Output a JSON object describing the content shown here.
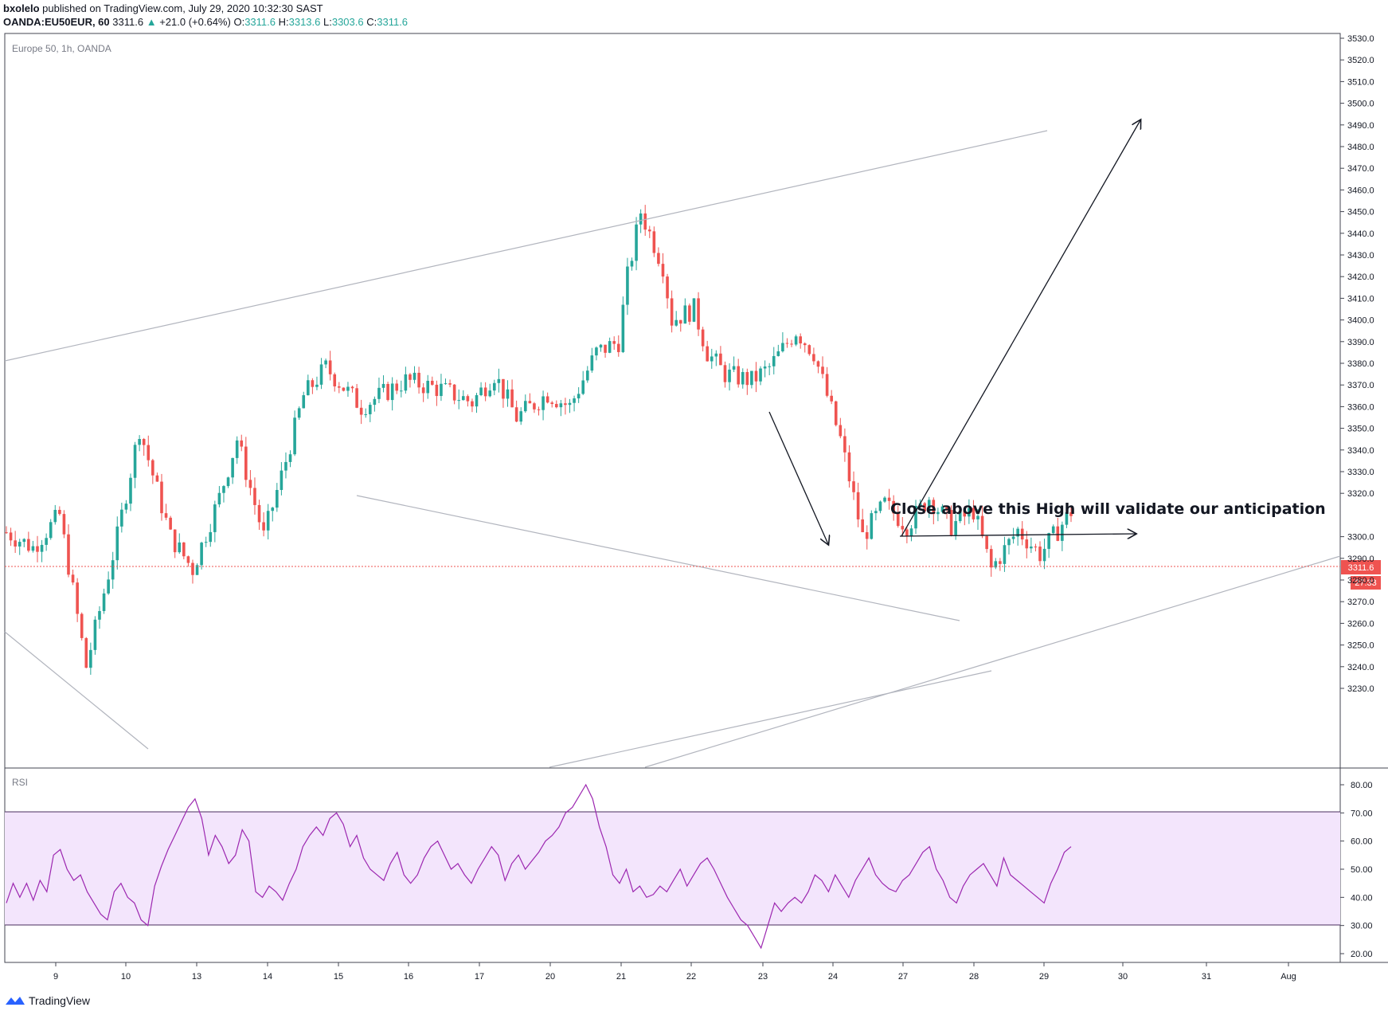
{
  "header": {
    "publisher": "bxolelo",
    "published_text": " published on TradingView.com, July 29, 2020 10:32:30 SAST",
    "symbol": "OANDA:EU50EUR, 60",
    "last": "3311.6",
    "change_arrow": "▲",
    "change": "+21.0 (+0.64%)",
    "o_label": "O:",
    "o_value": "3311.6",
    "h_label": "H:",
    "h_value": "3313.6",
    "l_label": "L:",
    "l_value": "3303.6",
    "c_label": "C:",
    "c_value": "3311.6"
  },
  "legend": "Europe 50, 1h, OANDA",
  "rsi_label": "RSI",
  "annotation": "Close above this High will validate our anticipation",
  "price_badge": "3311.6",
  "countdown_badge": "27:33",
  "footer_brand": "TradingView",
  "colors": {
    "up": "#26a69a",
    "down": "#ef5350",
    "rsi_line": "#9c27b0",
    "rsi_band": "#f3e5fc",
    "trendline": "#b2b5be",
    "price_line": "#ef5350"
  },
  "chart_data": [
    {
      "type": "candlestick",
      "ylim": [
        3226,
        3531
      ],
      "yticks": [
        "3530.0",
        "3520.0",
        "3510.0",
        "3500.0",
        "3490.0",
        "3480.0",
        "3470.0",
        "3460.0",
        "3450.0",
        "3440.0",
        "3430.0",
        "3420.0",
        "3410.0",
        "3400.0",
        "3390.0",
        "3380.0",
        "3370.0",
        "3360.0",
        "3350.0",
        "3340.0",
        "3330.0",
        "3320.0",
        "3300.0",
        "3290.0",
        "3280.0",
        "3270.0",
        "3260.0",
        "3250.0",
        "3240.0",
        "3230.0"
      ],
      "xticks": [
        "9",
        "10",
        "13",
        "14",
        "15",
        "16",
        "17",
        "20",
        "21",
        "22",
        "23",
        "24",
        "27",
        "28",
        "29",
        "30",
        "31",
        "Aug"
      ],
      "close_path": [
        [
          0,
          3302
        ],
        [
          6,
          3295
        ],
        [
          12,
          3310
        ],
        [
          18,
          3240
        ],
        [
          25,
          3300
        ],
        [
          30,
          3350
        ],
        [
          37,
          3300
        ],
        [
          42,
          3285
        ],
        [
          48,
          3318
        ],
        [
          52,
          3345
        ],
        [
          58,
          3300
        ],
        [
          63,
          3335
        ],
        [
          67,
          3365
        ],
        [
          72,
          3378
        ],
        [
          80,
          3360
        ],
        [
          90,
          3372
        ],
        [
          98,
          3368
        ],
        [
          105,
          3362
        ],
        [
          110,
          3375
        ],
        [
          115,
          3355
        ],
        [
          122,
          3366
        ],
        [
          127,
          3360
        ],
        [
          133,
          3385
        ],
        [
          138,
          3390
        ],
        [
          140,
          3420
        ],
        [
          143,
          3450
        ],
        [
          148,
          3425
        ],
        [
          150,
          3400
        ],
        [
          155,
          3405
        ],
        [
          158,
          3385
        ],
        [
          162,
          3375
        ],
        [
          168,
          3372
        ],
        [
          172,
          3378
        ],
        [
          178,
          3395
        ],
        [
          182,
          3385
        ],
        [
          188,
          3345
        ],
        [
          193,
          3300
        ],
        [
          198,
          3315
        ],
        [
          203,
          3305
        ],
        [
          208,
          3318
        ],
        [
          213,
          3305
        ],
        [
          218,
          3312
        ],
        [
          222,
          3285
        ],
        [
          228,
          3303
        ],
        [
          233,
          3292
        ],
        [
          236,
          3300
        ],
        [
          240,
          3311.6
        ]
      ]
    },
    {
      "type": "line",
      "series": [
        {
          "name": "RSI"
        }
      ],
      "ylim": [
        16,
        84
      ],
      "yticks": [
        "80.00",
        "70.00",
        "60.00",
        "50.00",
        "40.00",
        "30.00",
        "20.00"
      ],
      "bands": [
        30,
        70
      ],
      "values": [
        38,
        45,
        40,
        45,
        39,
        46,
        42,
        55,
        57,
        50,
        46,
        48,
        42,
        38,
        34,
        32,
        42,
        45,
        40,
        38,
        32,
        30,
        44,
        51,
        57,
        62,
        67,
        72,
        75,
        68,
        55,
        62,
        58,
        52,
        55,
        64,
        60,
        42,
        40,
        44,
        42,
        39,
        45,
        50,
        58,
        62,
        65,
        62,
        68,
        70,
        66,
        58,
        62,
        54,
        50,
        48,
        46,
        52,
        56,
        48,
        45,
        48,
        54,
        58,
        60,
        55,
        50,
        52,
        48,
        45,
        50,
        54,
        58,
        55,
        46,
        52,
        55,
        50,
        53,
        56,
        60,
        62,
        65,
        70,
        72,
        76,
        80,
        75,
        65,
        58,
        48,
        45,
        50,
        42,
        44,
        40,
        41,
        44,
        42,
        46,
        50,
        44,
        48,
        52,
        54,
        50,
        45,
        40,
        36,
        32,
        30,
        26,
        22,
        30,
        38,
        35,
        38,
        40,
        38,
        42,
        48,
        46,
        42,
        48,
        44,
        40,
        46,
        50,
        54,
        48,
        45,
        43,
        42,
        46,
        48,
        52,
        56,
        58,
        50,
        46,
        40,
        38,
        44,
        48,
        50,
        52,
        48,
        44,
        54,
        48,
        46,
        44,
        42,
        40,
        38,
        45,
        50,
        56,
        58
      ],
      "values_tail_note": ""
    }
  ],
  "rsi_values": [
    38,
    45,
    40,
    45,
    39,
    46,
    42,
    55,
    57,
    50,
    46,
    48,
    42,
    38,
    34,
    32,
    42,
    45,
    40,
    38,
    32,
    30,
    44,
    51,
    57,
    62,
    67,
    72,
    75,
    68,
    55,
    62,
    58,
    52,
    55,
    64,
    60,
    42,
    40,
    44,
    42,
    39,
    45,
    50,
    58,
    62,
    65,
    62,
    68,
    70,
    66,
    58,
    62,
    54,
    50,
    48,
    46,
    52,
    56,
    48,
    45,
    48,
    54,
    58,
    60,
    55,
    50,
    52,
    48,
    45,
    50,
    54,
    58,
    55,
    46,
    52,
    55,
    50,
    53,
    56,
    60,
    62,
    65,
    70,
    72,
    76,
    80,
    75,
    65,
    58,
    48,
    45,
    50,
    42,
    44,
    40,
    41,
    44,
    42,
    46,
    50,
    44,
    48,
    52,
    54,
    50,
    45,
    40,
    36,
    32,
    30,
    26,
    22,
    30,
    38,
    35,
    38,
    40,
    38,
    42,
    48,
    46,
    42,
    48,
    44,
    40,
    46,
    50,
    54,
    48,
    45,
    43,
    42,
    46,
    48,
    52,
    56,
    58,
    50,
    46,
    40,
    38,
    44,
    48,
    50,
    52,
    48,
    44,
    54,
    48,
    46,
    44,
    42,
    40,
    38,
    45,
    50,
    56,
    58
  ]
}
